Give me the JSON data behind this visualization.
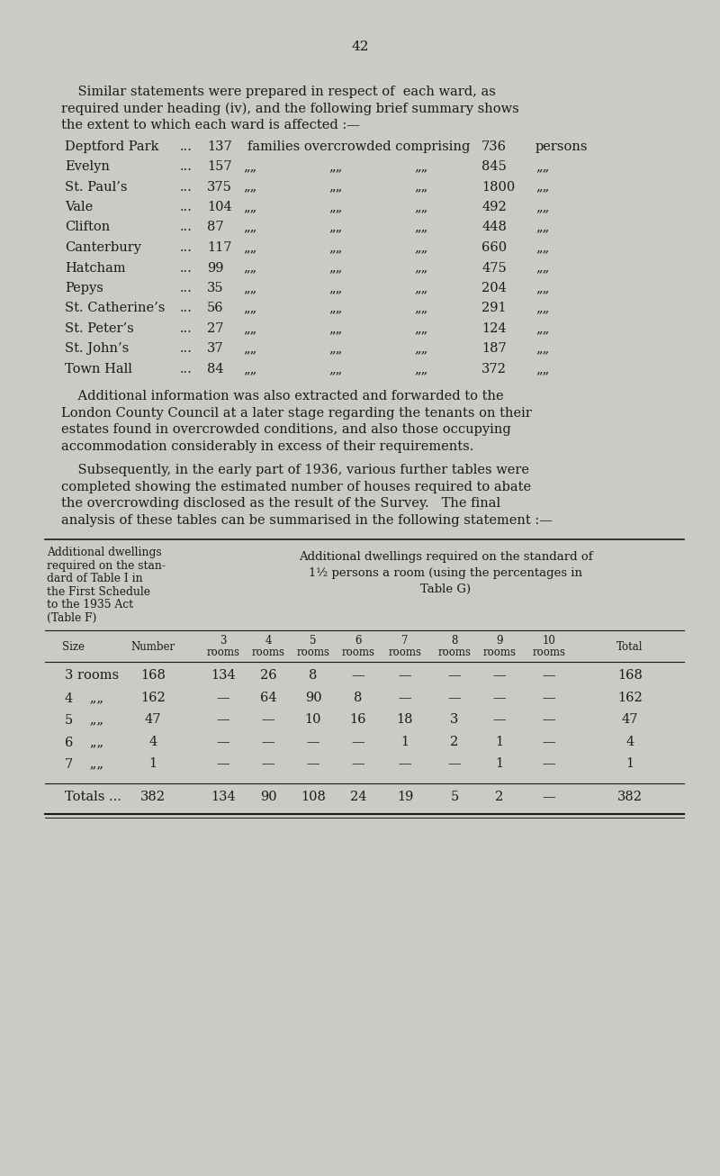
{
  "page_number": "42",
  "bg_color": "#cccac4",
  "text_color": "#1a1a1a",
  "para1_lines": [
    "    Similar statements were prepared in respect of  each ward, as",
    "required under heading (iv), and the following brief summary shows",
    "the extent to which each ward is affected :—"
  ],
  "wards": [
    {
      "name": "Deptford Park",
      "dots": "...",
      "families": "137",
      "persons": "736",
      "first": true
    },
    {
      "name": "Evelyn",
      "dots": "...",
      "families": "157",
      "persons": "845",
      "first": false
    },
    {
      "name": "St. Paul’s",
      "dots": "...",
      "families": "375",
      "persons": "1800",
      "first": false
    },
    {
      "name": "Vale",
      "dots": "...",
      "families": "104",
      "persons": "492",
      "first": false
    },
    {
      "name": "Clifton",
      "dots": "...",
      "families": "87",
      "persons": "448",
      "first": false
    },
    {
      "name": "Canterbury",
      "dots": "...",
      "families": "117",
      "persons": "660",
      "first": false
    },
    {
      "name": "Hatcham",
      "dots": "...",
      "families": "99",
      "persons": "475",
      "first": false
    },
    {
      "name": "Pepys",
      "dots": "...",
      "families": "35",
      "persons": "204",
      "first": false
    },
    {
      "name": "St. Catherine’s",
      "dots": "...",
      "families": "56",
      "persons": "291",
      "first": false
    },
    {
      "name": "St. Peter’s",
      "dots": "...",
      "families": "27",
      "persons": "124",
      "first": false
    },
    {
      "name": "St. John’s",
      "dots": "...",
      "families": "37",
      "persons": "187",
      "first": false
    },
    {
      "name": "Town Hall",
      "dots": "...",
      "families": "84",
      "persons": "372",
      "first": false
    }
  ],
  "ditto": "„„",
  "para2_lines": [
    "    Additional information was also extracted and forwarded to the",
    "London County Council at a later stage regarding the tenants on their",
    "estates found in overcrowded conditions, and also those occupying",
    "accommodation considerably in excess of their requirements."
  ],
  "para3_lines": [
    "    Subsequently, in the early part of 1936, various further tables were",
    "completed showing the estimated number of houses required to abate",
    "the overcrowding disclosed as the result of the Survey.   The final",
    "analysis of these tables can be summarised in the following statement :—"
  ],
  "table_left_header_lines": [
    "Additional dwellings",
    "required on the stan-",
    "dard of Table I in",
    "the First Schedule",
    "to the 1935 Act",
    "(Table F)"
  ],
  "table_right_header_lines": [
    "Additional dwellings required on the standard of",
    "1½ persons a room (using the percentages in",
    "Table G)"
  ],
  "col_header_nums": [
    "3",
    "4",
    "5",
    "6",
    "7",
    "8",
    "9",
    "10"
  ],
  "table_rows": [
    {
      "size": "3 rooms",
      "num": "168",
      "vals": [
        "134",
        "26",
        "8",
        "—",
        "—",
        "—",
        "—",
        "—"
      ],
      "total": "168"
    },
    {
      "size": "4    „„",
      "num": "162",
      "vals": [
        "—",
        "64",
        "90",
        "8",
        "—",
        "—",
        "—",
        "—"
      ],
      "total": "162"
    },
    {
      "size": "5    „„",
      "num": "47",
      "vals": [
        "—",
        "—",
        "10",
        "16",
        "18",
        "3",
        "—",
        "—"
      ],
      "total": "47"
    },
    {
      "size": "6    „„",
      "num": "4",
      "vals": [
        "—",
        "—",
        "—",
        "—",
        "1",
        "2",
        "1",
        "—"
      ],
      "total": "4"
    },
    {
      "size": "7    „„",
      "num": "1",
      "vals": [
        "—",
        "—",
        "—",
        "—",
        "—",
        "—",
        "1",
        "—"
      ],
      "total": "1"
    }
  ],
  "totals": {
    "label": "Totals ...",
    "num": "382",
    "vals": [
      "134",
      "90",
      "108",
      "24",
      "19",
      "5",
      "2",
      "—"
    ],
    "total": "382"
  },
  "fig_width": 8.0,
  "fig_height": 13.06,
  "dpi": 100
}
